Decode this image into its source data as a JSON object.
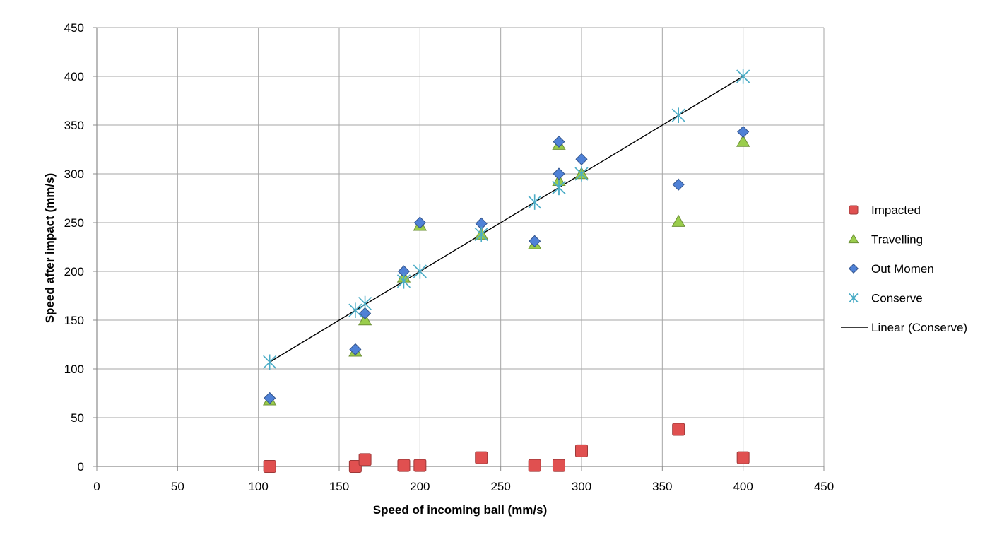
{
  "chart_data": {
    "type": "scatter",
    "title": "",
    "xlabel": "Speed of incoming ball (mm/s)",
    "ylabel": "Speed after impact (mm/s)",
    "xlim": [
      0,
      450
    ],
    "ylim": [
      0,
      450
    ],
    "xticks": [
      0,
      50,
      100,
      150,
      200,
      250,
      300,
      350,
      400,
      450
    ],
    "yticks": [
      0,
      50,
      100,
      150,
      200,
      250,
      300,
      350,
      400,
      450
    ],
    "grid": true,
    "legend_position": "right",
    "x": [
      107,
      160,
      166,
      190,
      200,
      238,
      271,
      286,
      286,
      300,
      360,
      400
    ],
    "series": [
      {
        "name": "Impacted",
        "marker": "square",
        "color": "#e05050",
        "values": [
          0,
          0,
          7,
          1,
          1,
          9,
          1,
          1,
          1,
          16,
          38,
          9
        ]
      },
      {
        "name": "Travelling",
        "marker": "triangle",
        "color": "#9acd4c",
        "values": [
          68,
          118,
          150,
          194,
          247,
          238,
          228,
          330,
          293,
          300,
          251,
          333
        ]
      },
      {
        "name": "Out Momen",
        "marker": "diamond",
        "color": "#4f81d6",
        "values": [
          70,
          120,
          157,
          200,
          250,
          249,
          231,
          333,
          300,
          315,
          289,
          343
        ]
      },
      {
        "name": "Conserve",
        "marker": "asterisk",
        "color": "#4bacc6",
        "values": [
          107,
          160,
          167,
          190,
          200,
          238,
          271,
          286,
          286,
          300,
          360,
          400
        ]
      }
    ],
    "trendline": {
      "name": "Linear (Conserve)",
      "color": "#000000",
      "x": [
        107,
        400
      ],
      "y": [
        107,
        400
      ]
    }
  }
}
